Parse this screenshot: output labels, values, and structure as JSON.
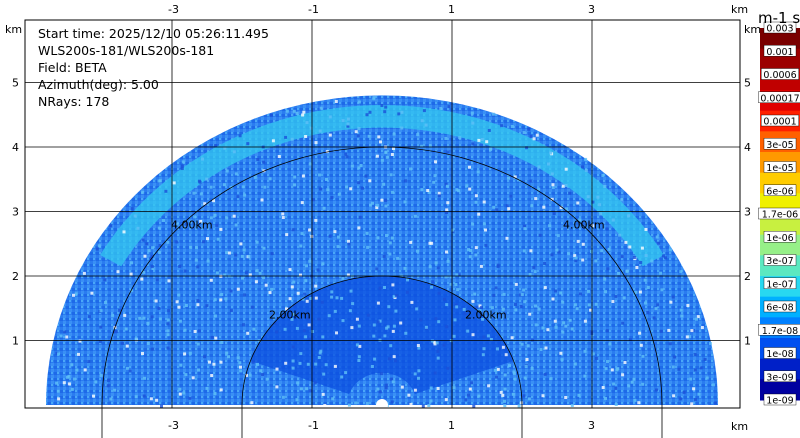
{
  "info": {
    "start_time": "Start time: 2025/12/10 05:26:11.495",
    "instrument": "WLS200s-181/WLS200s-181",
    "field": "Field: BETA",
    "azimuth": "Azimuth(deg): 5.00",
    "nrays": "NRays: 178"
  },
  "axes": {
    "x_unit": "km",
    "y_unit": "km",
    "x_ticks": [
      -3,
      -1,
      1,
      3
    ],
    "y_ticks": [
      1,
      2,
      3,
      4,
      5
    ],
    "x_range": [
      -5.0,
      5.0
    ],
    "y_range": [
      0,
      5.85
    ]
  },
  "range_rings": {
    "inner_label": "2.00km",
    "outer_label": "4.00km",
    "radii_km": [
      2,
      4
    ]
  },
  "colorbar": {
    "title": "m-1 sr-1",
    "labels": [
      "0.003",
      "0.001",
      "0.0006",
      "0.00017",
      "0.0001",
      "3e-05",
      "1e-05",
      "6e-06",
      "1.7e-06",
      "1e-06",
      "3e-07",
      "1e-07",
      "6e-08",
      "1.7e-08",
      "1e-08",
      "3e-09",
      "1e-09"
    ],
    "colors": [
      "#7a0000",
      "#9c0000",
      "#c00000",
      "#e00000",
      "#ff2000",
      "#ff6000",
      "#ff9900",
      "#ffcc00",
      "#f0f000",
      "#c8f040",
      "#96f088",
      "#5ce8c0",
      "#28d8f0",
      "#00b0ff",
      "#0080ff",
      "#0050f0",
      "#0020c8",
      "#0000a0"
    ]
  },
  "chart_data": {
    "type": "heatmap",
    "title": "",
    "xlabel": "km",
    "ylabel": "km",
    "xlim": [
      -5.0,
      5.0
    ],
    "ylim": [
      0,
      5.85
    ],
    "max_range_km": 4.8,
    "bands": [
      {
        "radius_km": [
          4.3,
          4.65
        ],
        "angle_deg": [
          30,
          150
        ],
        "level": "3e-07"
      },
      {
        "radius_km": [
          0.5,
          2.0
        ],
        "angle_deg": [
          20,
          160
        ],
        "level": "1e-08"
      }
    ]
  }
}
